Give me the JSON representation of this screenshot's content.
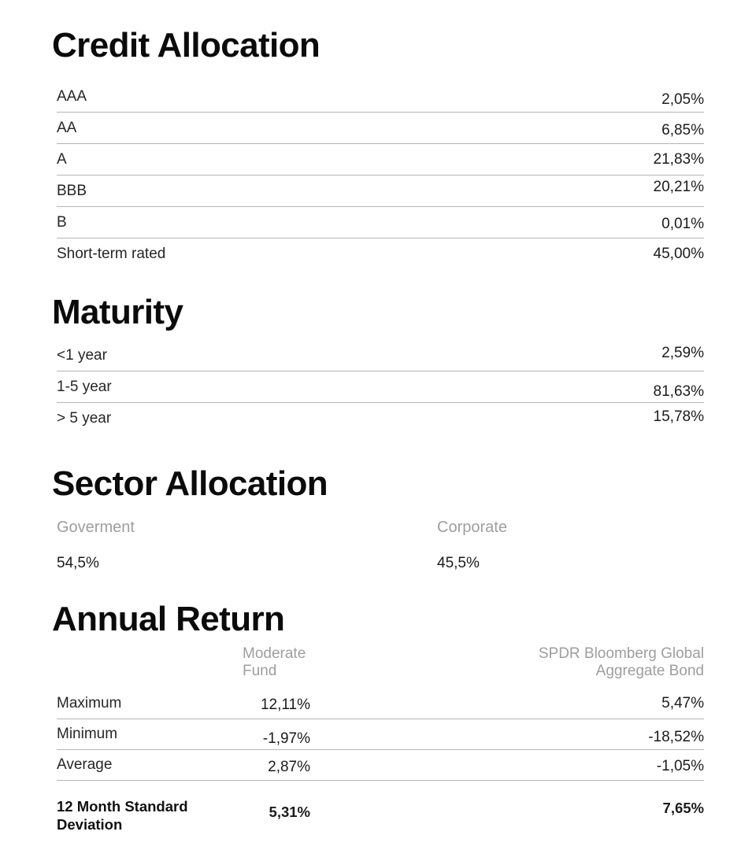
{
  "colors": {
    "background": "#ffffff",
    "heading_text": "#0b0b0b",
    "body_text": "#262626",
    "muted_text": "#9e9e9e",
    "divider": "#b5b5b5"
  },
  "credit_allocation": {
    "title": "Credit Allocation",
    "rows": [
      {
        "label": "AAA",
        "value": "2,05%"
      },
      {
        "label": "AA",
        "value": "6,85%"
      },
      {
        "label": "A",
        "value": "21,83%"
      },
      {
        "label": "BBB",
        "value": "20,21%"
      },
      {
        "label": "B",
        "value": "0,01%"
      },
      {
        "label": "Short-term rated",
        "value": "45,00%"
      }
    ]
  },
  "maturity": {
    "title": "Maturity",
    "rows": [
      {
        "label": "<1 year",
        "value": "2,59%"
      },
      {
        "label": "1-5 year",
        "value": "81,63%"
      },
      {
        "label": "> 5 year",
        "value": "15,78%"
      }
    ]
  },
  "sector_allocation": {
    "title": "Sector Allocation",
    "items": [
      {
        "label": "Goverment",
        "value": "54,5%"
      },
      {
        "label": "Corporate",
        "value": "45,5%"
      }
    ]
  },
  "annual_return": {
    "title": "Annual Return",
    "columns": [
      {
        "label": "Moderate Fund"
      },
      {
        "label": "SPDR Bloomberg Global Aggregate Bond"
      }
    ],
    "rows": [
      {
        "label": "Maximum",
        "values": [
          "12,11%",
          "5,47%"
        ]
      },
      {
        "label": "Minimum",
        "values": [
          "-1,97%",
          "-18,52%"
        ]
      },
      {
        "label": "Average",
        "values": [
          "2,87%",
          "-1,05%"
        ]
      },
      {
        "label": "12 Month Standard Deviation",
        "values": [
          "5,31%",
          "7,65%"
        ],
        "emphasis": true
      }
    ]
  }
}
